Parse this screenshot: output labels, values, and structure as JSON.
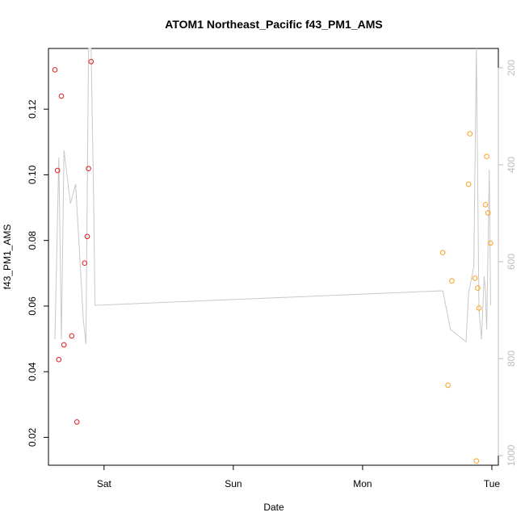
{
  "chart_data": {
    "type": "scatter",
    "title": "ATOM1 Northeast_Pacific f43_PM1_AMS",
    "xlabel": "Date",
    "ylabel": "f43_PM1_AMS",
    "x_ticks": [
      "Sat",
      "Sun",
      "Mon",
      "Tue"
    ],
    "x_ticks_at": [
      1.0,
      2.0,
      3.0,
      4.0
    ],
    "xlim": [
      0.57,
      4.05
    ],
    "ylim": [
      0.0115,
      0.1385
    ],
    "y_ticks": [
      0.02,
      0.04,
      0.06,
      0.08,
      0.1,
      0.12
    ],
    "y2_ticks": [
      200,
      400,
      600,
      800,
      1000
    ],
    "y2lim": [
      1020,
      160
    ],
    "colors": {
      "series1": "#e41a1c",
      "series2": "#ff9f1a",
      "line": "#c8c8c8",
      "axis": "#000000",
      "y2_axis": "#bdbdbd"
    },
    "series": [
      {
        "color": "#e41a1c",
        "x": [
          0.62,
          0.64,
          0.65,
          0.67,
          0.69,
          0.75,
          0.79,
          0.85,
          0.87,
          0.88,
          0.9
        ],
        "y": [
          0.132,
          0.1013,
          0.0437,
          0.124,
          0.0482,
          0.0509,
          0.0247,
          0.0731,
          0.0812,
          0.1019,
          0.1345
        ]
      },
      {
        "color": "#ff9f1a",
        "x": [
          3.62,
          3.66,
          3.69,
          3.82,
          3.83,
          3.87,
          3.88,
          3.89,
          3.9,
          3.95,
          3.96,
          3.97,
          3.99
        ],
        "y": [
          0.0763,
          0.0359,
          0.0677,
          0.0971,
          0.1125,
          0.0685,
          0.0128,
          0.0655,
          0.0594,
          0.0909,
          0.1056,
          0.0884,
          0.0792
        ]
      }
    ],
    "line_series": {
      "color": "#c8c8c8",
      "x": [
        0.62,
        0.65,
        0.67,
        0.69,
        0.74,
        0.78,
        0.84,
        0.86,
        0.88,
        0.9,
        0.92,
        0.93,
        3.62,
        3.68,
        3.8,
        3.82,
        3.86,
        3.88,
        3.9,
        3.92,
        3.94,
        3.95,
        3.96,
        3.98,
        3.99
      ],
      "y2": [
        760,
        385,
        760,
        370,
        480,
        440,
        720,
        770,
        160,
        160,
        480,
        690,
        660,
        740,
        765,
        665,
        610,
        160,
        700,
        760,
        630,
        660,
        740,
        410,
        690
      ]
    }
  }
}
